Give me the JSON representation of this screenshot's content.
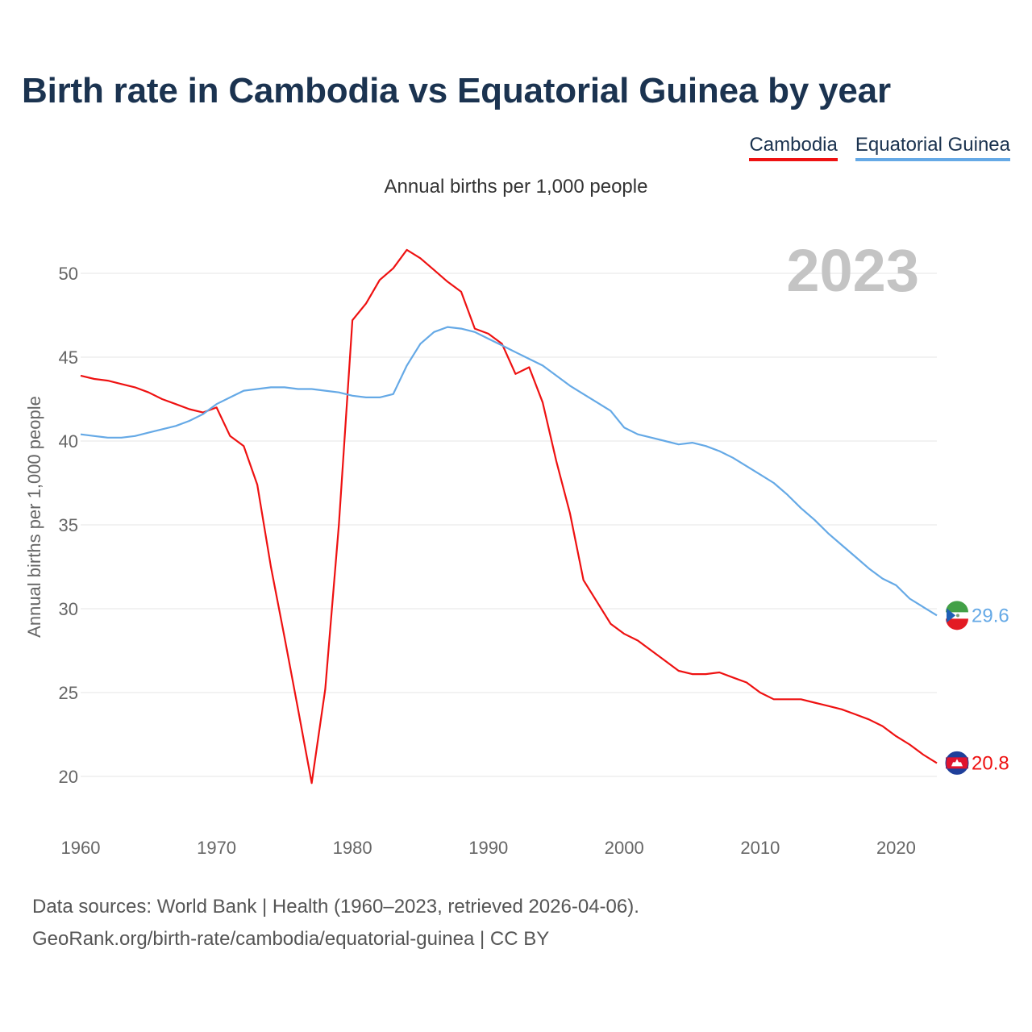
{
  "title": "Birth rate in Cambodia vs Equatorial Guinea by year",
  "subtitle": "Annual births per 1,000 people",
  "year_label": "2023",
  "source_line1": "Data sources: World Bank | Health (1960–2023, retrieved 2026-04-06).",
  "source_line2": "GeoRank.org/birth-rate/cambodia/equatorial-guinea | CC BY",
  "colors": {
    "cambodia": "#ee1111",
    "equatorial_guinea": "#65a9e6",
    "grid": "#e6e6e6",
    "axis_text": "#666666",
    "year": "#c4c4c4"
  },
  "chart_data": {
    "type": "line",
    "title": "Birth rate in Cambodia vs Equatorial Guinea by year",
    "xlabel": "",
    "ylabel": "Annual births per 1,000 people",
    "xlim": [
      1960,
      2023
    ],
    "ylim": [
      17.5,
      52.5
    ],
    "yticks": [
      20,
      25,
      30,
      35,
      40,
      45,
      50
    ],
    "xticks": [
      1960,
      1970,
      1980,
      1990,
      2000,
      2010,
      2020
    ],
    "legend": "top-right",
    "series": [
      {
        "name": "Cambodia",
        "color": "#ee1111",
        "end_label": "20.8",
        "x": [
          1960,
          1961,
          1962,
          1963,
          1964,
          1965,
          1966,
          1967,
          1968,
          1969,
          1970,
          1971,
          1972,
          1973,
          1974,
          1975,
          1976,
          1977,
          1978,
          1979,
          1980,
          1981,
          1982,
          1983,
          1984,
          1985,
          1986,
          1987,
          1988,
          1989,
          1990,
          1991,
          1992,
          1993,
          1994,
          1995,
          1996,
          1997,
          1998,
          1999,
          2000,
          2001,
          2002,
          2003,
          2004,
          2005,
          2006,
          2007,
          2008,
          2009,
          2010,
          2011,
          2012,
          2013,
          2014,
          2015,
          2016,
          2017,
          2018,
          2019,
          2020,
          2021,
          2022,
          2023
        ],
        "y": [
          43.9,
          43.7,
          43.6,
          43.4,
          43.2,
          42.9,
          42.5,
          42.2,
          41.9,
          41.7,
          42.0,
          40.3,
          39.7,
          37.4,
          32.5,
          28.3,
          24.0,
          19.6,
          25.2,
          35.0,
          47.2,
          48.2,
          49.6,
          50.3,
          51.4,
          50.9,
          50.2,
          49.5,
          48.9,
          46.7,
          46.4,
          45.8,
          44.0,
          44.4,
          42.3,
          38.8,
          35.7,
          31.7,
          30.4,
          29.1,
          28.5,
          28.1,
          27.5,
          26.9,
          26.3,
          26.1,
          26.1,
          26.2,
          25.9,
          25.6,
          25.0,
          24.6,
          24.6,
          24.6,
          24.4,
          24.2,
          24.0,
          23.7,
          23.4,
          23.0,
          22.4,
          21.9,
          21.3,
          20.8
        ]
      },
      {
        "name": "Equatorial Guinea",
        "color": "#65a9e6",
        "end_label": "29.6",
        "x": [
          1960,
          1961,
          1962,
          1963,
          1964,
          1965,
          1966,
          1967,
          1968,
          1969,
          1970,
          1971,
          1972,
          1973,
          1974,
          1975,
          1976,
          1977,
          1978,
          1979,
          1980,
          1981,
          1982,
          1983,
          1984,
          1985,
          1986,
          1987,
          1988,
          1989,
          1990,
          1991,
          1992,
          1993,
          1994,
          1995,
          1996,
          1997,
          1998,
          1999,
          2000,
          2001,
          2002,
          2003,
          2004,
          2005,
          2006,
          2007,
          2008,
          2009,
          2010,
          2011,
          2012,
          2013,
          2014,
          2015,
          2016,
          2017,
          2018,
          2019,
          2020,
          2021,
          2022,
          2023
        ],
        "y": [
          40.4,
          40.3,
          40.2,
          40.2,
          40.3,
          40.5,
          40.7,
          40.9,
          41.2,
          41.6,
          42.2,
          42.6,
          43.0,
          43.1,
          43.2,
          43.2,
          43.1,
          43.1,
          43.0,
          42.9,
          42.7,
          42.6,
          42.6,
          42.8,
          44.5,
          45.8,
          46.5,
          46.8,
          46.7,
          46.5,
          46.1,
          45.7,
          45.3,
          44.9,
          44.5,
          43.9,
          43.3,
          42.8,
          42.3,
          41.8,
          40.8,
          40.4,
          40.2,
          40.0,
          39.8,
          39.9,
          39.7,
          39.4,
          39.0,
          38.5,
          38.0,
          37.5,
          36.8,
          36.0,
          35.3,
          34.5,
          33.8,
          33.1,
          32.4,
          31.8,
          31.4,
          30.6,
          30.1,
          29.6
        ]
      }
    ]
  }
}
